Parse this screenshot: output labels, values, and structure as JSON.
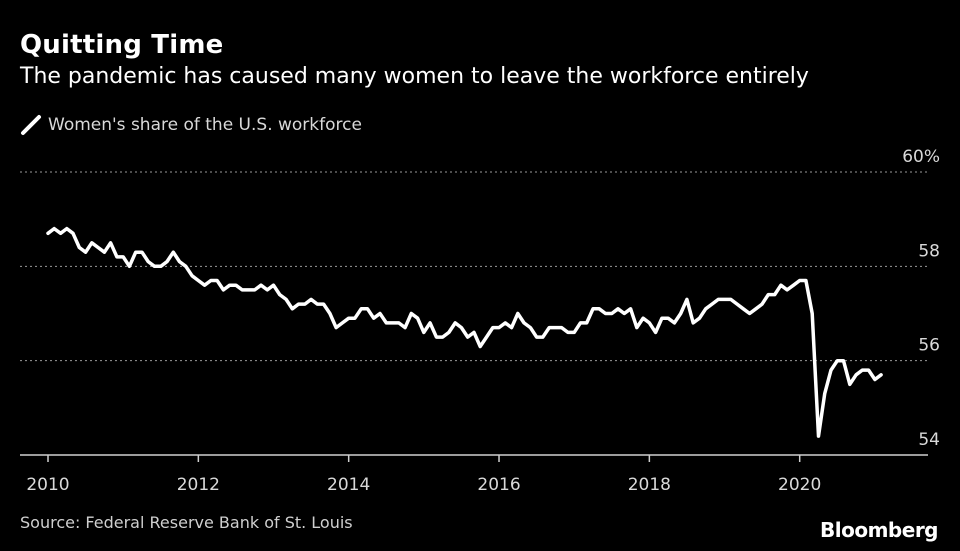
{
  "header": {
    "title": "Quitting Time",
    "subtitle": "The pandemic has caused many women to leave the workforce entirely"
  },
  "legend": {
    "label": "Women's share of the U.S. workforce"
  },
  "footer": {
    "source": "Source: Federal Reserve Bank of St. Louis",
    "brand": "Bloomberg"
  },
  "colors": {
    "background": "#000000",
    "line": "#ffffff",
    "grid": "#9a9a9a",
    "text": "#d9d9d9"
  },
  "chart_data": {
    "type": "line",
    "title": "Quitting Time",
    "subtitle": "The pandemic has caused many women to leave the workforce entirely",
    "xlabel": "",
    "ylabel": "",
    "xlim": [
      2010,
      2021.8
    ],
    "ylim": [
      54,
      60
    ],
    "y_ticks": [
      54,
      56,
      58,
      60
    ],
    "y_tick_labels": [
      "54",
      "56",
      "58",
      "60%"
    ],
    "x_ticks": [
      2010,
      2012,
      2014,
      2016,
      2018,
      2020
    ],
    "x_tick_labels": [
      "2010",
      "2012",
      "2014",
      "2016",
      "2018",
      "2020"
    ],
    "grid": true,
    "series": [
      {
        "name": "Women's share of the U.S. workforce",
        "x": [
          2010.0,
          2010.083,
          2010.167,
          2010.25,
          2010.333,
          2010.417,
          2010.5,
          2010.583,
          2010.667,
          2010.75,
          2010.833,
          2010.917,
          2011.0,
          2011.083,
          2011.167,
          2011.25,
          2011.333,
          2011.417,
          2011.5,
          2011.583,
          2011.667,
          2011.75,
          2011.833,
          2011.917,
          2012.0,
          2012.083,
          2012.167,
          2012.25,
          2012.333,
          2012.417,
          2012.5,
          2012.583,
          2012.667,
          2012.75,
          2012.833,
          2012.917,
          2013.0,
          2013.083,
          2013.167,
          2013.25,
          2013.333,
          2013.417,
          2013.5,
          2013.583,
          2013.667,
          2013.75,
          2013.833,
          2013.917,
          2014.0,
          2014.083,
          2014.167,
          2014.25,
          2014.333,
          2014.417,
          2014.5,
          2014.583,
          2014.667,
          2014.75,
          2014.833,
          2014.917,
          2015.0,
          2015.083,
          2015.167,
          2015.25,
          2015.333,
          2015.417,
          2015.5,
          2015.583,
          2015.667,
          2015.75,
          2015.833,
          2015.917,
          2016.0,
          2016.083,
          2016.167,
          2016.25,
          2016.333,
          2016.417,
          2016.5,
          2016.583,
          2016.667,
          2016.75,
          2016.833,
          2016.917,
          2017.0,
          2017.083,
          2017.167,
          2017.25,
          2017.333,
          2017.417,
          2017.5,
          2017.583,
          2017.667,
          2017.75,
          2017.833,
          2017.917,
          2018.0,
          2018.083,
          2018.167,
          2018.25,
          2018.333,
          2018.417,
          2018.5,
          2018.583,
          2018.667,
          2018.75,
          2018.833,
          2018.917,
          2019.0,
          2019.083,
          2019.167,
          2019.25,
          2019.333,
          2019.417,
          2019.5,
          2019.583,
          2019.667,
          2019.75,
          2019.833,
          2019.917,
          2020.0,
          2020.083,
          2020.167,
          2020.25,
          2020.333,
          2020.417,
          2020.5,
          2020.583,
          2020.667,
          2020.75,
          2020.833,
          2020.917,
          2021.0,
          2021.083
        ],
        "values": [
          58.7,
          58.8,
          58.7,
          58.8,
          58.7,
          58.4,
          58.3,
          58.5,
          58.4,
          58.3,
          58.5,
          58.2,
          58.2,
          58.0,
          58.3,
          58.3,
          58.1,
          58.0,
          58.0,
          58.1,
          58.3,
          58.1,
          58.0,
          57.8,
          57.7,
          57.6,
          57.7,
          57.7,
          57.5,
          57.6,
          57.6,
          57.5,
          57.5,
          57.5,
          57.6,
          57.5,
          57.6,
          57.4,
          57.3,
          57.1,
          57.2,
          57.2,
          57.3,
          57.2,
          57.2,
          57.0,
          56.7,
          56.8,
          56.9,
          56.9,
          57.1,
          57.1,
          56.9,
          57.0,
          56.8,
          56.8,
          56.8,
          56.7,
          57.0,
          56.9,
          56.6,
          56.8,
          56.5,
          56.5,
          56.6,
          56.8,
          56.7,
          56.5,
          56.6,
          56.3,
          56.5,
          56.7,
          56.7,
          56.8,
          56.7,
          57.0,
          56.8,
          56.7,
          56.5,
          56.5,
          56.7,
          56.7,
          56.7,
          56.6,
          56.6,
          56.8,
          56.8,
          57.1,
          57.1,
          57.0,
          57.0,
          57.1,
          57.0,
          57.1,
          56.7,
          56.9,
          56.8,
          56.6,
          56.9,
          56.9,
          56.8,
          57.0,
          57.3,
          56.8,
          56.9,
          57.1,
          57.2,
          57.3,
          57.3,
          57.3,
          57.2,
          57.1,
          57.0,
          57.1,
          57.2,
          57.4,
          57.4,
          57.6,
          57.5,
          57.6,
          57.7,
          57.7,
          57.0,
          54.4,
          55.3,
          55.8,
          56.0,
          56.0,
          55.5,
          55.7,
          55.8,
          55.8,
          55.6,
          55.7
        ]
      }
    ]
  }
}
